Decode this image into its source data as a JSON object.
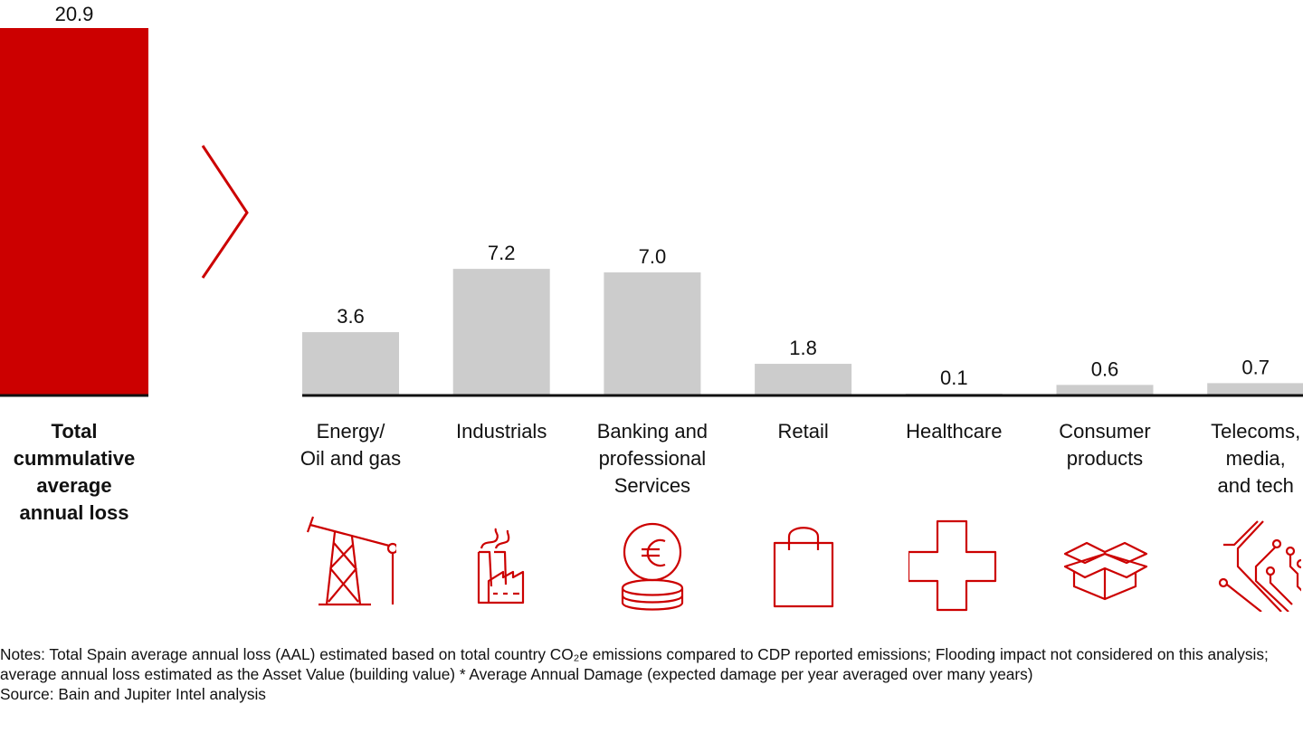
{
  "chart_data": {
    "type": "bar",
    "title": "",
    "xlabel": "",
    "ylabel": "",
    "ylim": [
      0,
      20.9
    ],
    "grid": false,
    "legend": "none",
    "total": {
      "label": "Total\ncummulative\naverage\nannual loss",
      "value": 20.9,
      "display": "20.9",
      "color": "#cc0000"
    },
    "categories": [
      "Energy/\nOil and gas",
      "Industrials",
      "Banking and\nprofessional\nServices",
      "Retail",
      "Healthcare",
      "Consumer\nproducts",
      "Telecoms,\nmedia,\nand tech"
    ],
    "values": [
      3.6,
      7.2,
      7.0,
      1.8,
      0.1,
      0.6,
      0.7
    ],
    "value_labels": [
      "3.6",
      "7.2",
      "7.0",
      "1.8",
      "0.1",
      "0.6",
      "0.7"
    ],
    "bar_color": "#cccccc",
    "icons": [
      "oil-pump-icon",
      "factory-icon",
      "euro-coins-icon",
      "shopping-bag-icon",
      "medical-cross-icon",
      "open-box-icon",
      "circuit-icon"
    ],
    "icon_color": "#cc0000"
  },
  "notes": {
    "line1": "Notes: Total Spain average annual loss (AAL) estimated based on total country CO₂e emissions compared to CDP reported emissions; Flooding impact not considered on this analysis; average annual loss estimated as the Asset Value (building value) * Average Annual Damage (expected damage per year averaged over many years)",
    "source": "Source: Bain and Jupiter Intel analysis"
  }
}
